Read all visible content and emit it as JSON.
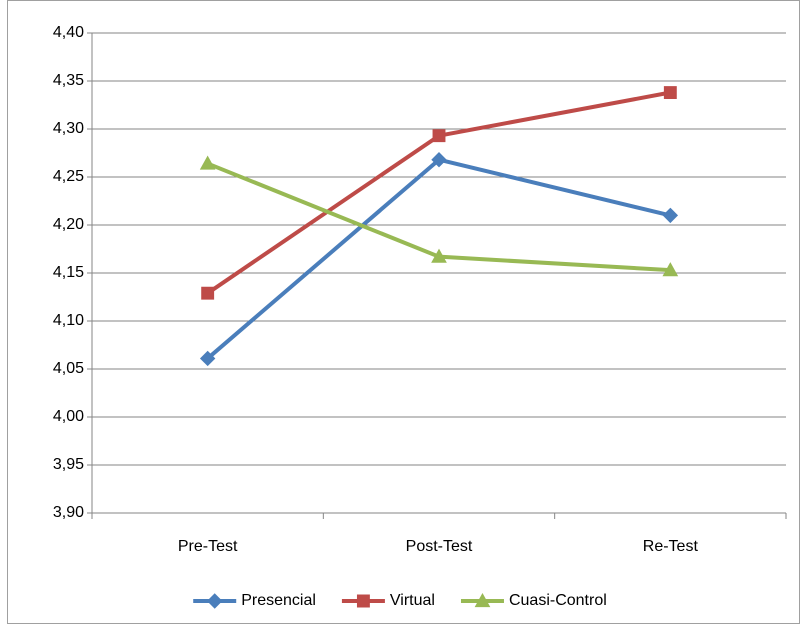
{
  "chart_data": {
    "type": "line",
    "categories": [
      "Pre-Test",
      "Post-Test",
      "Re-Test"
    ],
    "series": [
      {
        "name": "Presencial",
        "color": "#4a7ebb",
        "marker": "diamond",
        "values": [
          4.061,
          4.268,
          4.21
        ]
      },
      {
        "name": "Virtual",
        "color": "#be4b48",
        "marker": "square",
        "values": [
          4.129,
          4.293,
          4.338
        ]
      },
      {
        "name": "Cuasi-Control",
        "color": "#98b954",
        "marker": "triangle",
        "values": [
          4.264,
          4.167,
          4.153
        ]
      }
    ],
    "ylim": [
      3.9,
      4.4
    ],
    "yticks": [
      {
        "value": 3.9,
        "label": "3,90"
      },
      {
        "value": 3.95,
        "label": "3,95"
      },
      {
        "value": 4.0,
        "label": "4,00"
      },
      {
        "value": 4.05,
        "label": "4,05"
      },
      {
        "value": 4.1,
        "label": "4,10"
      },
      {
        "value": 4.15,
        "label": "4,15"
      },
      {
        "value": 4.2,
        "label": "4,20"
      },
      {
        "value": 4.25,
        "label": "4,25"
      },
      {
        "value": 4.3,
        "label": "4,30"
      },
      {
        "value": 4.35,
        "label": "4,35"
      },
      {
        "value": 4.4,
        "label": "4,40"
      }
    ],
    "grid": true,
    "legend": "bottom"
  }
}
